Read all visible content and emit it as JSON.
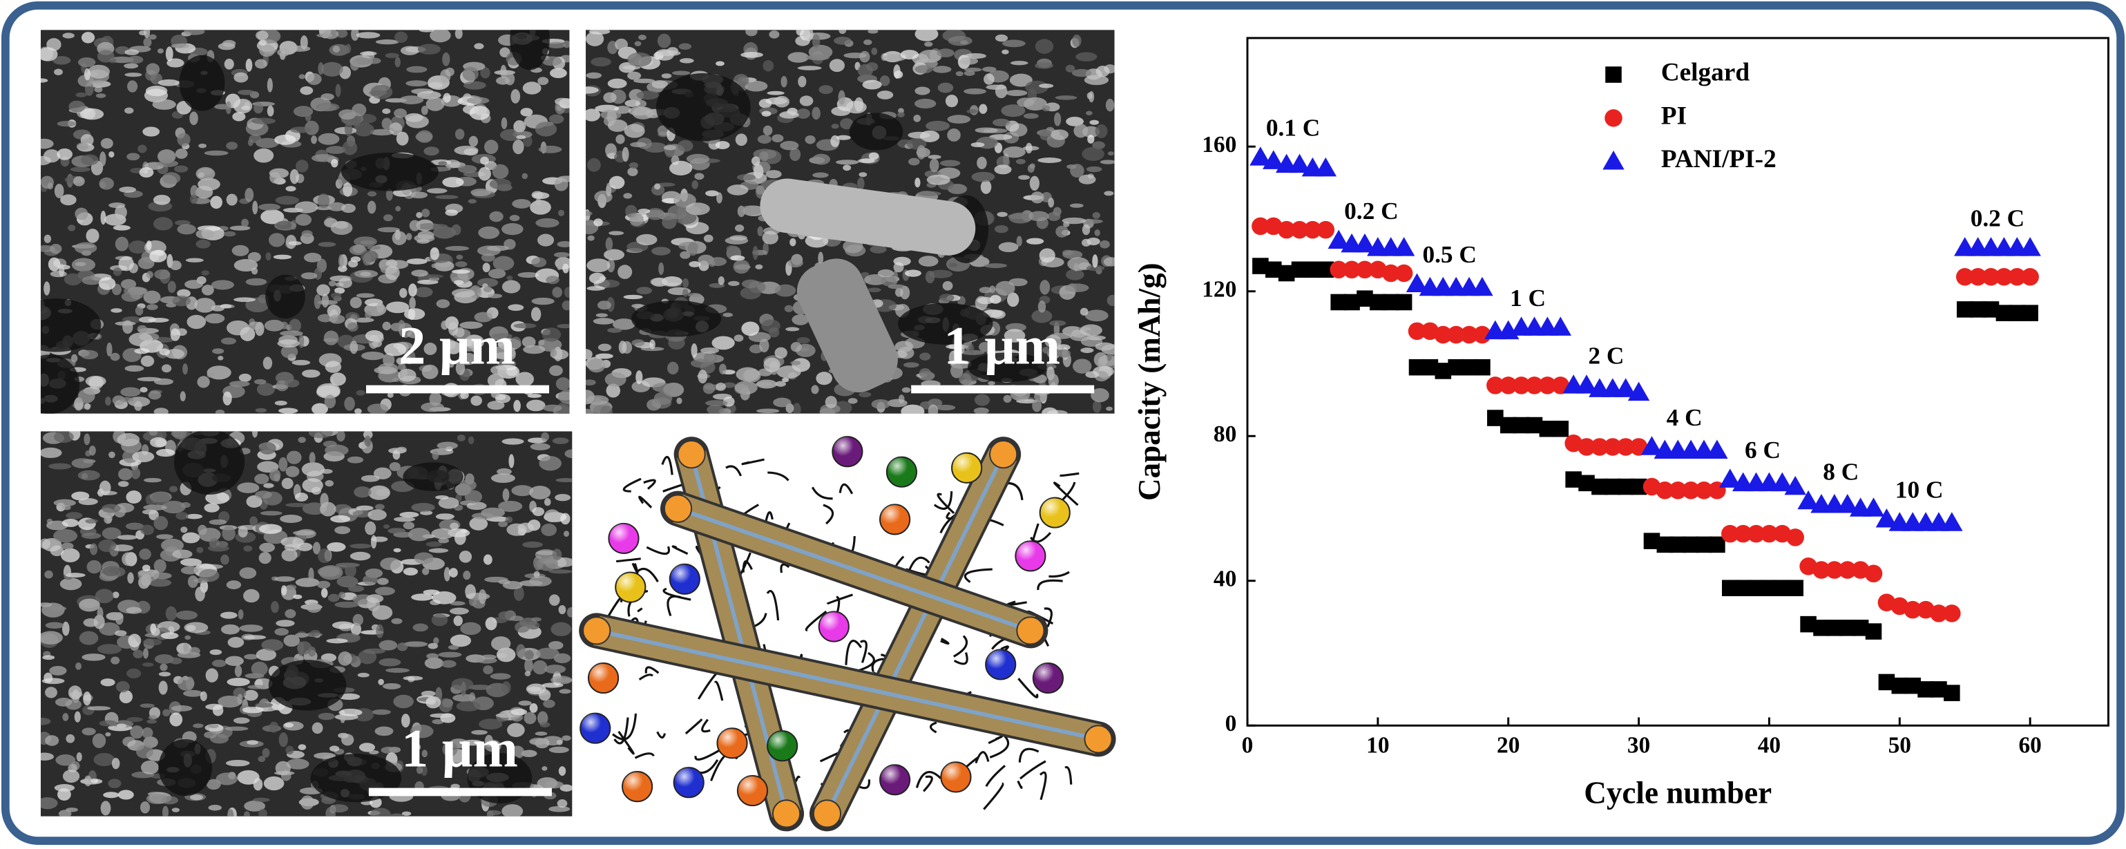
{
  "chart_data": {
    "type": "scatter",
    "y_label": "Capacity (mAh/g)",
    "x_label": "Cycle number",
    "x": [
      1,
      2,
      3,
      4,
      5,
      6,
      7,
      8,
      9,
      10,
      11,
      12,
      13,
      14,
      15,
      16,
      17,
      18,
      19,
      20,
      21,
      22,
      23,
      24,
      25,
      26,
      27,
      28,
      29,
      30,
      31,
      32,
      33,
      34,
      35,
      36,
      37,
      38,
      39,
      40,
      41,
      42,
      43,
      44,
      45,
      46,
      47,
      48,
      49,
      50,
      51,
      52,
      53,
      54,
      55,
      56,
      57,
      58,
      59,
      60
    ],
    "xlim": [
      0,
      66
    ],
    "xticks": [
      0,
      10,
      20,
      30,
      40,
      50,
      60
    ],
    "ylim": [
      0,
      190
    ],
    "yticks": [
      0,
      40,
      80,
      120,
      160
    ],
    "series": [
      {
        "name": "Celgard",
        "color": "#000000",
        "marker": "square",
        "values": [
          127,
          126,
          125,
          126,
          126,
          126,
          117,
          117,
          118,
          117,
          117,
          117,
          99,
          99,
          98,
          99,
          99,
          99,
          85,
          83,
          83,
          83,
          82,
          82,
          68,
          67,
          66,
          66,
          66,
          66,
          51,
          50,
          50,
          50,
          50,
          50,
          38,
          38,
          38,
          38,
          38,
          38,
          28,
          27,
          27,
          27,
          27,
          26,
          12,
          11,
          11,
          10,
          10,
          9,
          115,
          115,
          115,
          114,
          114,
          114
        ]
      },
      {
        "name": "PI",
        "color": "#e8231f",
        "marker": "circle",
        "values": [
          138,
          138,
          137,
          137,
          137,
          137,
          126,
          126,
          126,
          126,
          125,
          125,
          109,
          109,
          108,
          108,
          108,
          108,
          94,
          94,
          94,
          94,
          94,
          94,
          78,
          77,
          77,
          77,
          77,
          77,
          66,
          65,
          65,
          65,
          65,
          65,
          53,
          53,
          53,
          53,
          53,
          52,
          44,
          43,
          43,
          43,
          43,
          42,
          34,
          33,
          32,
          32,
          31,
          31,
          124,
          124,
          124,
          124,
          124,
          124
        ]
      },
      {
        "name": "PANI/PI-2",
        "color": "#1a1ae6",
        "marker": "triangle",
        "values": [
          157,
          156,
          155,
          155,
          154,
          154,
          134,
          133,
          133,
          132,
          132,
          132,
          122,
          121,
          121,
          121,
          121,
          121,
          109,
          109,
          110,
          110,
          110,
          110,
          94,
          94,
          93,
          93,
          93,
          92,
          77,
          76,
          76,
          76,
          76,
          76,
          68,
          67,
          67,
          67,
          67,
          66,
          62,
          61,
          61,
          61,
          60,
          60,
          57,
          56,
          56,
          56,
          56,
          56,
          132,
          132,
          132,
          132,
          132,
          132
        ]
      }
    ],
    "annotations": [
      "0.1 C",
      "0.2 C",
      "0.5 C",
      "1 C",
      "2 C",
      "4 C",
      "6 C",
      "8 C",
      "10 C",
      "0.2 C"
    ]
  },
  "panels": [
    {
      "scale_label": "2 μm"
    },
    {
      "scale_label": "1 μm"
    },
    {
      "scale_label": "1 μm"
    }
  ]
}
